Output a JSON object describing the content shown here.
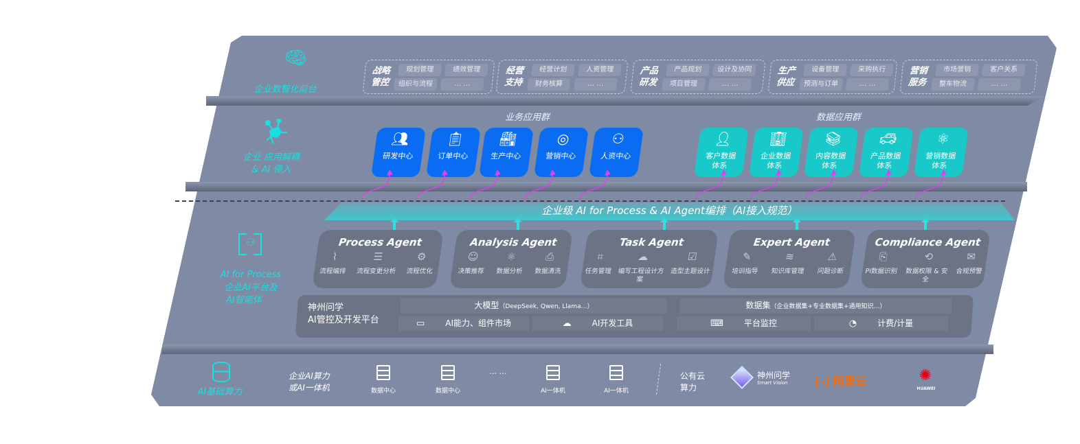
{
  "layers": {
    "frontend": {
      "label": "企业数智化前台",
      "icon": "brain-icon",
      "groups": [
        {
          "title": "战略管控",
          "items": [
            "规划管理",
            "绩效管理",
            "组织与流程",
            "… …"
          ]
        },
        {
          "title": "经营支持",
          "items": [
            "经营计划",
            "人资管理",
            "财务核算",
            "… …"
          ]
        },
        {
          "title": "产品研发",
          "items": [
            "产品规划",
            "设计及协同",
            "项目管理",
            "… …"
          ]
        },
        {
          "title": "生产供应",
          "items": [
            "设备管理",
            "采购执行",
            "预测与订单",
            "… …"
          ]
        },
        {
          "title": "营销服务",
          "items": [
            "市场营销",
            "客户关系",
            "整车物流",
            "… …"
          ]
        }
      ]
    },
    "apps": {
      "label_line1": "企业 应用解耦",
      "label_line2": "& AI 侵入",
      "icon": "molecule-icon",
      "business_title": "业务应用群",
      "data_title": "数据应用群",
      "business": [
        {
          "label": "研发中心",
          "icon": "users-icon"
        },
        {
          "label": "订单中心",
          "icon": "clipboard-icon"
        },
        {
          "label": "生产中心",
          "icon": "production-icon"
        },
        {
          "label": "营销中心",
          "icon": "target-icon"
        },
        {
          "label": "人资中心",
          "icon": "person-icon"
        }
      ],
      "data": [
        {
          "l1": "客户数据",
          "l2": "体系",
          "icon": "user-icon"
        },
        {
          "l1": "企业数据",
          "l2": "体系",
          "icon": "building-icon"
        },
        {
          "l1": "内容数据",
          "l2": "体系",
          "icon": "books-icon"
        },
        {
          "l1": "产品数据",
          "l2": "体系",
          "icon": "car-icon"
        },
        {
          "l1": "营销数据",
          "l2": "体系",
          "icon": "atom-icon"
        }
      ]
    },
    "ai": {
      "banner": "企业级 AI for Process & AI Agent编排（AI接入规范）",
      "label_line1": "AI for Process",
      "label_line2": "企业AI平台及",
      "label_line3": "AI智能体",
      "icon": "face-scan-icon",
      "agents": [
        {
          "title": "Process Agent",
          "items": [
            "流程编排",
            "流程变更分析",
            "流程优化"
          ]
        },
        {
          "title": "Analysis Agent",
          "items": [
            "决策推荐",
            "数据分析",
            "数据清洗"
          ]
        },
        {
          "title": "Task Agent",
          "items": [
            "任务管理",
            "编写工程设计方案",
            "造型主题设计"
          ]
        },
        {
          "title": "Expert Agent",
          "items": [
            "培训指导",
            "知识库管理",
            "问题诊断"
          ]
        },
        {
          "title": "Compliance Agent",
          "items": [
            "PI数据识别",
            "数据权限 & 安全",
            "合规预警"
          ]
        }
      ],
      "platform": {
        "title_line1": "神州问学",
        "title_line2": "AI管控及开发平台",
        "model": "大模型",
        "model_note": "（DeepSeek, Qwen, Llama…）",
        "dataset": "数据集",
        "dataset_note": "（企业数据集+专业数据集+通用知识…）",
        "cells": [
          "AI能力、组件市场",
          "AI开发工具",
          "平台监控",
          "计费/计量"
        ]
      }
    },
    "infra": {
      "label": "AI基础算力",
      "icon": "database-icon",
      "onprem_line1": "企业AI算力",
      "onprem_line2": "或AI一体机",
      "servers": [
        "数据中心",
        "数据中心",
        "AI一体机",
        "AI一体机"
      ],
      "ellipsis": "… …",
      "public_line1": "公有云",
      "public_line2": "算力",
      "vendors": {
        "shenzhou": "神州问学",
        "shenzhou_sub": "Smart Vision",
        "aliyun": "阿里云",
        "huawei": "HUAWEI"
      }
    }
  },
  "colors": {
    "panel": "#7f8aa5",
    "accent_cyan": "#19e0e0",
    "business_blue": "#0a6cf2",
    "data_teal": "#19c9c9",
    "arrow_magenta": "#e040e8",
    "aliyun_orange": "#ff6a00",
    "huawei_red": "#e60012"
  }
}
